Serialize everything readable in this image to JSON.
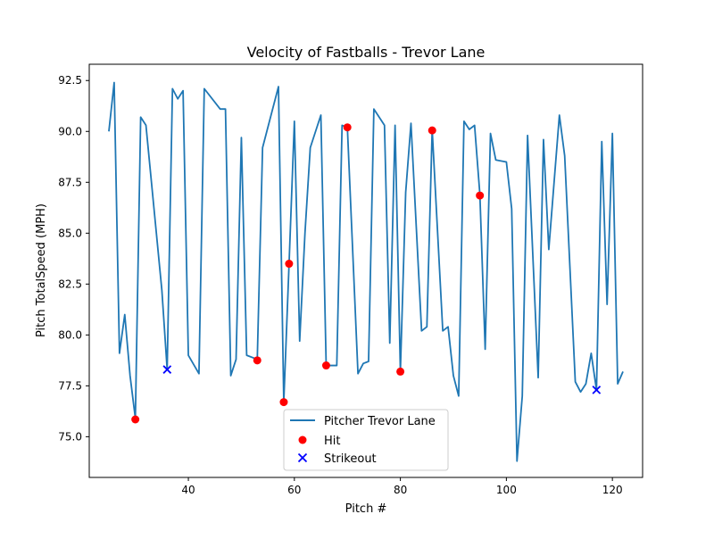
{
  "chart_data": {
    "type": "line",
    "title": "Velocity of Fastballs - Trevor Lane",
    "xlabel": "Pitch #",
    "ylabel": "Pitch TotalSpeed (MPH)",
    "xlim": [
      21.3,
      125.7
    ],
    "ylim": [
      73.0,
      93.3
    ],
    "x_ticks": [
      40,
      60,
      80,
      100,
      120
    ],
    "y_ticks": [
      75.0,
      77.5,
      80.0,
      82.5,
      85.0,
      87.5,
      90.0,
      92.5
    ],
    "x_tick_labels": [
      "40",
      "60",
      "80",
      "100",
      "120"
    ],
    "y_tick_labels": [
      "75.0",
      "77.5",
      "80.0",
      "82.5",
      "85.0",
      "87.5",
      "90.0",
      "92.5"
    ],
    "grid": false,
    "legend_position": "lower center",
    "series": [
      {
        "name": "Pitcher Trevor Lane",
        "kind": "line",
        "color": "#1f77b4",
        "points": [
          [
            25,
            90.0
          ],
          [
            26,
            92.4
          ],
          [
            27,
            79.1
          ],
          [
            28,
            81.0
          ],
          [
            29,
            78.0
          ],
          [
            30,
            75.9
          ],
          [
            31,
            90.7
          ],
          [
            32,
            90.3
          ],
          [
            35,
            82.2
          ],
          [
            36,
            78.3
          ],
          [
            37,
            92.1
          ],
          [
            38,
            91.6
          ],
          [
            39,
            92.0
          ],
          [
            40,
            79.0
          ],
          [
            42,
            78.1
          ],
          [
            43,
            92.1
          ],
          [
            46,
            91.1
          ],
          [
            47,
            91.1
          ],
          [
            48,
            78.0
          ],
          [
            49,
            78.8
          ],
          [
            50,
            89.7
          ],
          [
            51,
            79.0
          ],
          [
            53,
            78.8
          ],
          [
            54,
            89.2
          ],
          [
            57,
            92.2
          ],
          [
            58,
            76.7
          ],
          [
            59,
            83.5
          ],
          [
            60,
            90.5
          ],
          [
            61,
            79.7
          ],
          [
            62,
            85.0
          ],
          [
            63,
            89.2
          ],
          [
            65,
            90.8
          ],
          [
            66,
            78.5
          ],
          [
            68,
            78.5
          ],
          [
            69,
            90.3
          ],
          [
            70,
            90.2
          ],
          [
            72,
            78.1
          ],
          [
            73,
            78.6
          ],
          [
            74,
            78.7
          ],
          [
            75,
            91.1
          ],
          [
            77,
            90.3
          ],
          [
            78,
            79.6
          ],
          [
            79,
            90.3
          ],
          [
            80,
            78.2
          ],
          [
            81,
            87.0
          ],
          [
            82,
            90.4
          ],
          [
            84,
            80.2
          ],
          [
            85,
            80.4
          ],
          [
            86,
            90.1
          ],
          [
            88,
            80.2
          ],
          [
            89,
            80.4
          ],
          [
            90,
            78.0
          ],
          [
            91,
            77.0
          ],
          [
            92,
            90.5
          ],
          [
            93,
            90.1
          ],
          [
            94,
            90.3
          ],
          [
            95,
            86.9
          ],
          [
            96,
            79.3
          ],
          [
            97,
            89.9
          ],
          [
            98,
            88.6
          ],
          [
            100,
            88.5
          ],
          [
            101,
            86.2
          ],
          [
            102,
            73.8
          ],
          [
            103,
            77.0
          ],
          [
            104,
            89.8
          ],
          [
            106,
            77.9
          ],
          [
            107,
            89.6
          ],
          [
            108,
            84.2
          ],
          [
            110,
            90.8
          ],
          [
            111,
            88.8
          ],
          [
            113,
            77.7
          ],
          [
            114,
            77.2
          ],
          [
            115,
            77.6
          ],
          [
            116,
            79.1
          ],
          [
            117,
            77.3
          ],
          [
            118,
            89.5
          ],
          [
            119,
            81.5
          ],
          [
            120,
            89.9
          ],
          [
            121,
            77.6
          ],
          [
            122,
            78.2
          ]
        ]
      },
      {
        "name": "Hit",
        "kind": "scatter",
        "marker": "circle",
        "color": "#ff0000",
        "points": [
          [
            30,
            75.85
          ],
          [
            53,
            78.75
          ],
          [
            58,
            76.7
          ],
          [
            59,
            83.5
          ],
          [
            66,
            78.5
          ],
          [
            70,
            90.2
          ],
          [
            80,
            78.2
          ],
          [
            86,
            90.05
          ],
          [
            95,
            86.85
          ]
        ]
      },
      {
        "name": "Strikeout",
        "kind": "scatter",
        "marker": "x",
        "color": "#0000ff",
        "points": [
          [
            36,
            78.3
          ],
          [
            117,
            77.3
          ]
        ]
      }
    ]
  }
}
